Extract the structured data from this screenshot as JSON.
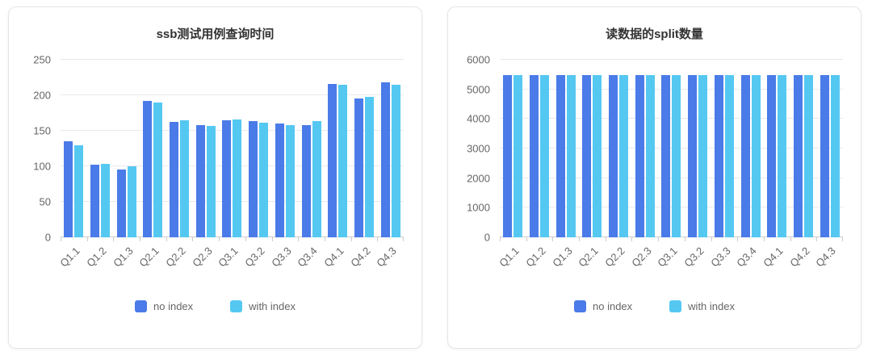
{
  "page": {
    "background": "#ffffff"
  },
  "chart_data": [
    {
      "type": "bar",
      "title": "ssb测试用例查询时间",
      "categories": [
        "Q1.1",
        "Q1.2",
        "Q1.3",
        "Q2.1",
        "Q2.2",
        "Q2.3",
        "Q3.1",
        "Q3.2",
        "Q3.3",
        "Q3.4",
        "Q4.1",
        "Q4.2",
        "Q4.3"
      ],
      "series": [
        {
          "name": "no index",
          "color": "#4a7be8",
          "values": [
            135,
            102,
            96,
            192,
            162,
            158,
            165,
            164,
            160,
            158,
            216,
            196,
            218
          ]
        },
        {
          "name": "with index",
          "color": "#55c8f2",
          "values": [
            130,
            103,
            100,
            190,
            165,
            157,
            166,
            161,
            158,
            164,
            215,
            198,
            215
          ]
        }
      ],
      "ylim": [
        0,
        250
      ],
      "ytick_step": 50,
      "grid": true,
      "legend_position": "bottom"
    },
    {
      "type": "bar",
      "title": "读数据的split数量",
      "categories": [
        "Q1.1",
        "Q1.2",
        "Q1.3",
        "Q2.1",
        "Q2.2",
        "Q2.3",
        "Q3.1",
        "Q3.2",
        "Q3.3",
        "Q3.4",
        "Q4.1",
        "Q4.2",
        "Q4.3"
      ],
      "series": [
        {
          "name": "no index",
          "color": "#4a7be8",
          "values": [
            5470,
            5470,
            5470,
            5470,
            5470,
            5470,
            5470,
            5470,
            5470,
            5470,
            5470,
            5470,
            5470
          ]
        },
        {
          "name": "with index",
          "color": "#55c8f2",
          "values": [
            5470,
            5470,
            5470,
            5470,
            5470,
            5470,
            5470,
            5470,
            5470,
            5470,
            5470,
            5470,
            5470
          ]
        }
      ],
      "ylim": [
        0,
        6000
      ],
      "ytick_step": 1000,
      "grid": true,
      "legend_position": "bottom"
    }
  ]
}
